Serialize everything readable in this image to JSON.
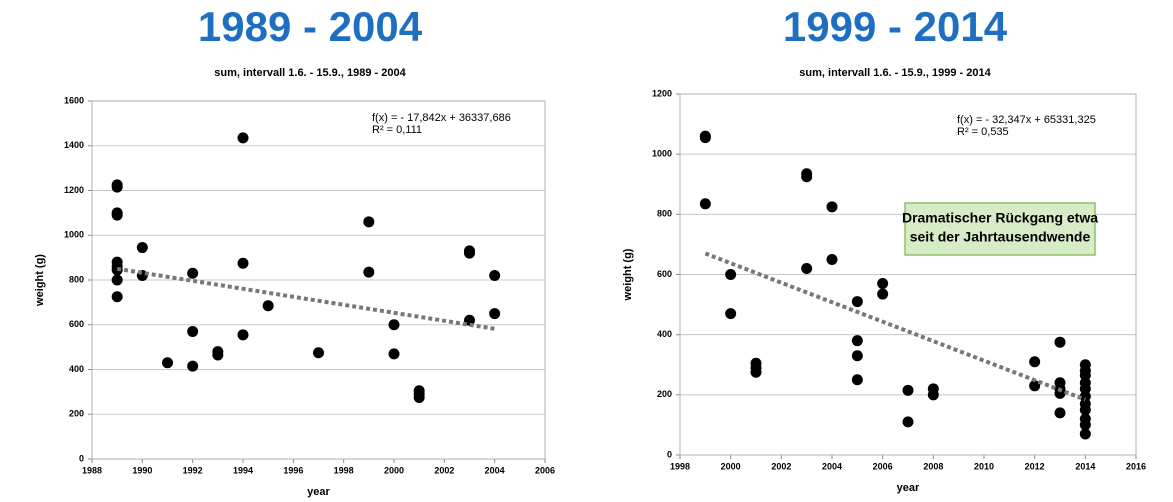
{
  "chart_data": [
    {
      "type": "scatter",
      "title": "1989 - 2004",
      "subtitle": "sum, intervall 1.6. - 15.9., 1989 - 2004",
      "x_label": "year",
      "y_label": "weight  (g)",
      "equation": "f(x) = - 17,842x + 36337,686",
      "r_squared": "R² = 0,111",
      "xlim": [
        1988,
        2006
      ],
      "xticks": [
        1988,
        1990,
        1992,
        1994,
        1996,
        1998,
        2000,
        2002,
        2004,
        2006
      ],
      "ylim": [
        0,
        1600
      ],
      "yticks": [
        0,
        200,
        400,
        600,
        800,
        1000,
        1200,
        1400,
        1600
      ],
      "grid": true,
      "series": [
        {
          "color": "#000000",
          "style": "points",
          "x": [
            1989,
            1989,
            1989,
            1989,
            1989,
            1989,
            1989,
            1989,
            1989,
            1990,
            1990,
            1991,
            1992,
            1992,
            1992,
            1993,
            1993,
            1994,
            1994,
            1994,
            1995,
            1997,
            1999,
            1999,
            2000,
            2000,
            2001,
            2001,
            2001,
            2003,
            2003,
            2003,
            2004,
            2004
          ],
          "values": [
            1225,
            1215,
            1100,
            1090,
            880,
            860,
            845,
            800,
            725,
            945,
            820,
            430,
            830,
            570,
            415,
            480,
            465,
            1435,
            875,
            555,
            685,
            475,
            1060,
            835,
            600,
            470,
            305,
            290,
            275,
            930,
            920,
            620,
            820,
            650
          ]
        },
        {
          "color": "#777777",
          "style": "dashed",
          "x": [
            1989,
            2004
          ],
          "values": [
            850,
            582
          ]
        }
      ]
    },
    {
      "type": "scatter",
      "title": "1999 - 2014",
      "subtitle": "sum, intervall 1.6. - 15.9., 1999 - 2014",
      "x_label": "year",
      "y_label": "weight  (g)",
      "equation": "f(x) = - 32,347x + 65331,325",
      "r_squared": "R² = 0,535",
      "annotation": [
        "Dramatischer Rückgang etwa",
        "seit der Jahrtausendwende"
      ],
      "xlim": [
        1998,
        2016
      ],
      "xticks": [
        1998,
        2000,
        2002,
        2004,
        2006,
        2008,
        2010,
        2012,
        2014,
        2016
      ],
      "ylim": [
        0,
        1200
      ],
      "yticks": [
        0,
        200,
        400,
        600,
        800,
        1000,
        1200
      ],
      "grid": true,
      "series": [
        {
          "color": "#000000",
          "style": "points",
          "x": [
            1999,
            1999,
            1999,
            2000,
            2000,
            2001,
            2001,
            2001,
            2003,
            2003,
            2003,
            2004,
            2004,
            2005,
            2005,
            2005,
            2005,
            2006,
            2006,
            2007,
            2007,
            2008,
            2008,
            2012,
            2012,
            2013,
            2013,
            2013,
            2013,
            2013,
            2014,
            2014,
            2014,
            2014,
            2014,
            2014,
            2014,
            2014,
            2014,
            2014,
            2014
          ],
          "values": [
            1060,
            1055,
            835,
            600,
            470,
            305,
            290,
            275,
            935,
            925,
            620,
            825,
            650,
            510,
            380,
            330,
            250,
            570,
            535,
            215,
            110,
            220,
            200,
            310,
            230,
            375,
            240,
            220,
            205,
            140,
            300,
            280,
            265,
            240,
            220,
            195,
            170,
            150,
            120,
            100,
            70
          ]
        },
        {
          "color": "#777777",
          "style": "dashed",
          "x": [
            1999,
            2014
          ],
          "values": [
            670,
            184
          ]
        }
      ]
    }
  ]
}
